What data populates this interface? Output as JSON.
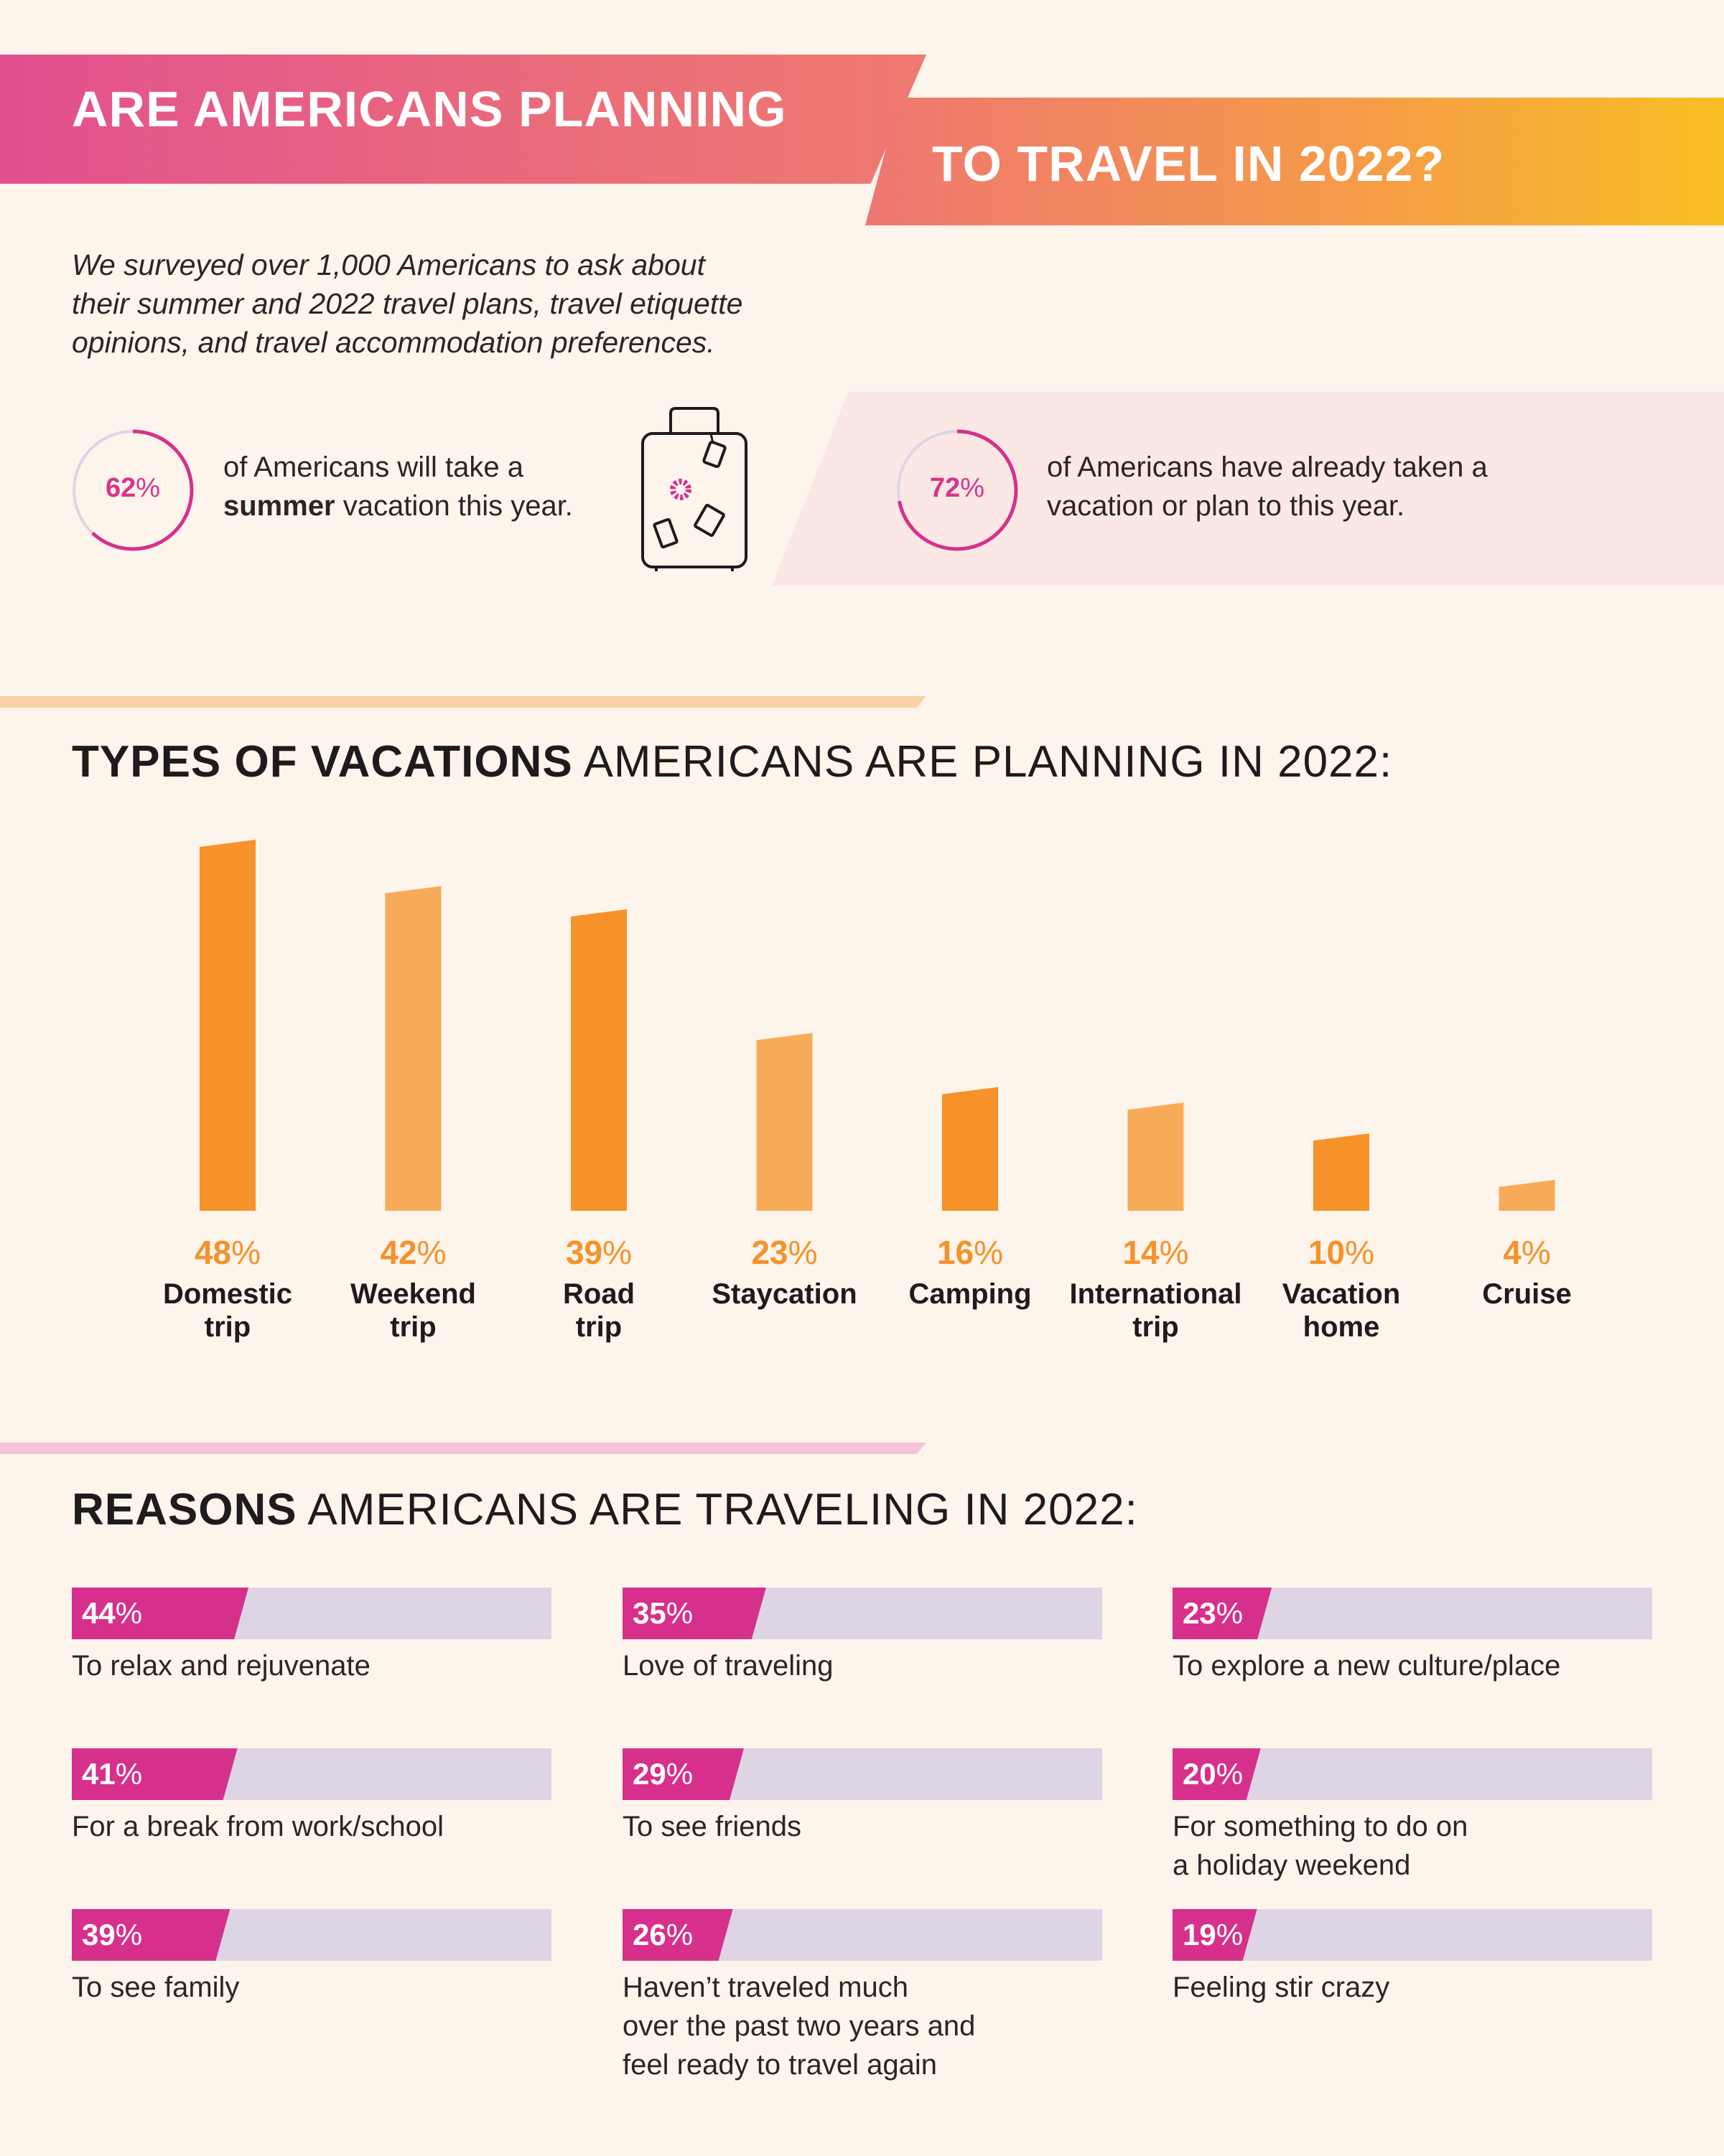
{
  "header": {
    "title_line1": "ARE AMERICANS PLANNING",
    "title_line2": "TO TRAVEL IN 2022?"
  },
  "intro": {
    "line1": "We surveyed over 1,000 Americans to ask about",
    "line2": "their summer and 2022 travel plans, travel etiquette",
    "line3": "opinions, and travel accommodation preferences."
  },
  "stats": [
    {
      "value_num": "62",
      "unit": "%",
      "fraction": 0.62,
      "line1": "of Americans will take a",
      "bold": "summer",
      "line2_rest": " vacation this year."
    },
    {
      "value_num": "72",
      "unit": "%",
      "fraction": 0.72,
      "line1": "of Americans have already taken a",
      "line2": "vacation or plan to this year."
    }
  ],
  "icons": {
    "suitcase": "suitcase-icon"
  },
  "colors": {
    "orange": "#f5922a",
    "light_orange": "#f7ab58",
    "magenta": "#d6308c",
    "track": "#ddd5e4"
  },
  "section1": {
    "bold": "TYPES OF VACATIONS",
    "rest": " AMERICANS ARE PLANNING IN 2022:"
  },
  "section2": {
    "bold": "REASONS",
    "rest": " AMERICANS ARE TRAVELING IN 2022:"
  },
  "chart_data": [
    {
      "type": "bar",
      "title": "TYPES OF VACATIONS AMERICANS ARE PLANNING IN 2022:",
      "categories": [
        [
          "Domestic",
          "trip"
        ],
        [
          "Weekend",
          "trip"
        ],
        [
          "Road",
          "trip"
        ],
        [
          "Staycation"
        ],
        [
          "Camping"
        ],
        [
          "International",
          "trip"
        ],
        [
          "Vacation",
          "home"
        ],
        [
          "Cruise"
        ]
      ],
      "values": [
        48,
        42,
        39,
        23,
        16,
        14,
        10,
        4
      ],
      "value_labels": [
        "48",
        "42",
        "39",
        "23",
        "16",
        "14",
        "10",
        "4"
      ],
      "unit": "%",
      "ylim": [
        0,
        48
      ]
    },
    {
      "type": "bar",
      "title": "REASONS AMERICANS ARE TRAVELING IN 2022:",
      "orientation": "horizontal",
      "unit": "%",
      "items": [
        {
          "value": 44,
          "label": "44",
          "lines": [
            "To relax and rejuvenate"
          ]
        },
        {
          "value": 41,
          "label": "41",
          "lines": [
            "For a break from work/school"
          ]
        },
        {
          "value": 39,
          "label": "39",
          "lines": [
            "To see family"
          ]
        },
        {
          "value": 35,
          "label": "35",
          "lines": [
            "Love of traveling"
          ]
        },
        {
          "value": 29,
          "label": "29",
          "lines": [
            "To see friends"
          ]
        },
        {
          "value": 26,
          "label": "26",
          "lines": [
            "Haven’t traveled much",
            "over the past two years and",
            "feel ready to travel again"
          ]
        },
        {
          "value": 23,
          "label": "23",
          "lines": [
            "To explore a new culture/place"
          ]
        },
        {
          "value": 20,
          "label": "20",
          "lines": [
            "For something to do on",
            "a holiday weekend"
          ]
        },
        {
          "value": 19,
          "label": "19",
          "lines": [
            "Feeling stir crazy"
          ]
        }
      ]
    }
  ]
}
